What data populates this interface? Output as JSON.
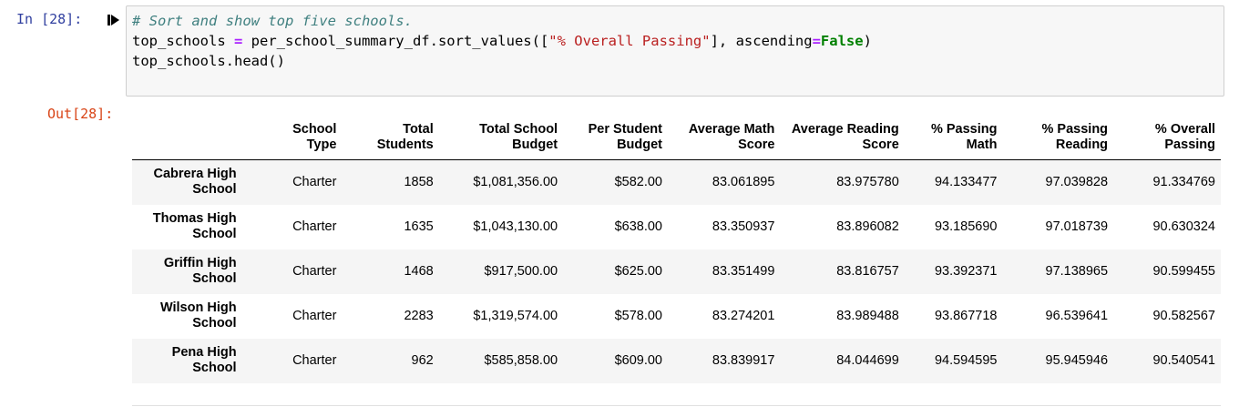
{
  "input_prompt": "In [28]:",
  "output_prompt": "Out[28]:",
  "code": {
    "line1_comment": "# Sort and show top five schools.",
    "line2_a": "top_schools ",
    "line2_op": "=",
    "line2_b": " per_school_summary_df.sort_values([",
    "line2_str": "\"% Overall Passing\"",
    "line2_c": "], ascending",
    "line2_op2": "=",
    "line2_kw": "False",
    "line2_d": ")",
    "line3": "top_schools.head()"
  },
  "table": {
    "columns": [
      {
        "line1": "School",
        "line2": "Type"
      },
      {
        "line1": "Total",
        "line2": "Students"
      },
      {
        "line1": "Total School",
        "line2": "Budget"
      },
      {
        "line1": "Per Student",
        "line2": "Budget"
      },
      {
        "line1": "Average Math",
        "line2": "Score"
      },
      {
        "line1": "Average Reading",
        "line2": "Score"
      },
      {
        "line1": "% Passing",
        "line2": "Math"
      },
      {
        "line1": "% Passing",
        "line2": "Reading"
      },
      {
        "line1": "% Overall",
        "line2": "Passing"
      }
    ],
    "rows": [
      {
        "index1": "Cabrera High",
        "index2": "School",
        "cells": [
          "Charter",
          "1858",
          "$1,081,356.00",
          "$582.00",
          "83.061895",
          "83.975780",
          "94.133477",
          "97.039828",
          "91.334769"
        ]
      },
      {
        "index1": "Thomas High",
        "index2": "School",
        "cells": [
          "Charter",
          "1635",
          "$1,043,130.00",
          "$638.00",
          "83.350937",
          "83.896082",
          "93.185690",
          "97.018739",
          "90.630324"
        ]
      },
      {
        "index1": "Griffin High",
        "index2": "School",
        "cells": [
          "Charter",
          "1468",
          "$917,500.00",
          "$625.00",
          "83.351499",
          "83.816757",
          "93.392371",
          "97.138965",
          "90.599455"
        ]
      },
      {
        "index1": "Wilson High",
        "index2": "School",
        "cells": [
          "Charter",
          "2283",
          "$1,319,574.00",
          "$578.00",
          "83.274201",
          "83.989488",
          "93.867718",
          "96.539641",
          "90.582567"
        ]
      },
      {
        "index1": "Pena High",
        "index2": "School",
        "cells": [
          "Charter",
          "962",
          "$585,858.00",
          "$609.00",
          "83.839917",
          "84.044699",
          "94.594595",
          "95.945946",
          "90.540541"
        ]
      }
    ]
  }
}
